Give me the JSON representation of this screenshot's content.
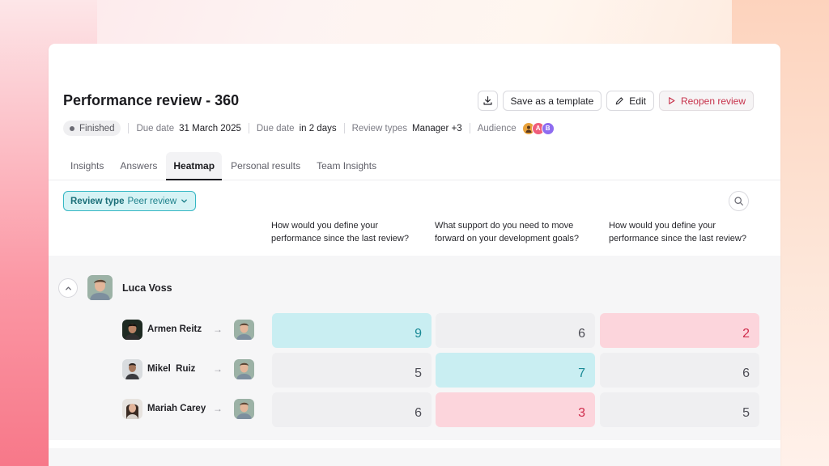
{
  "header": {
    "title": "Performance review - 360",
    "save_template_label": "Save as a template",
    "edit_label": "Edit",
    "reopen_label": "Reopen review"
  },
  "meta": {
    "status": "Finished",
    "due_date_label": "Due date",
    "due_date_value": "31 March 2025",
    "due_in_label": "Due date",
    "due_in_value": "in 2 days",
    "review_types_label": "Review types",
    "review_types_value": "Manager +3",
    "audience_label": "Audience",
    "audience_initials": [
      "",
      "A",
      "B"
    ]
  },
  "tabs": [
    "Insights",
    "Answers",
    "Heatmap",
    "Personal results",
    "Team Insights"
  ],
  "active_tab": "Heatmap",
  "filter": {
    "label": "Review type",
    "value": "Peer review"
  },
  "questions": [
    "How would you define your performance since the last review?",
    "What support do you need to move forward on your development goals?",
    "How would you define your performance since the last review?"
  ],
  "group": {
    "name": "Luca Voss"
  },
  "rows": [
    {
      "name": "Armen Reitz",
      "scores": [
        "9",
        "6",
        "2"
      ],
      "levels": [
        "high",
        "neutral",
        "low"
      ]
    },
    {
      "name": "Mikel  Ruiz",
      "scores": [
        "5",
        "7",
        "6"
      ],
      "levels": [
        "neutral",
        "high",
        "neutral"
      ]
    },
    {
      "name": "Mariah Carey",
      "scores": [
        "6",
        "3",
        "5"
      ],
      "levels": [
        "neutral",
        "low",
        "neutral"
      ]
    }
  ],
  "colors": {
    "accent_teal": "#35b7c4",
    "high_cell": "#c9eef2",
    "low_cell": "#fcd5dc",
    "neutral_cell": "#efeff1",
    "reopen_red": "#c7324b"
  }
}
